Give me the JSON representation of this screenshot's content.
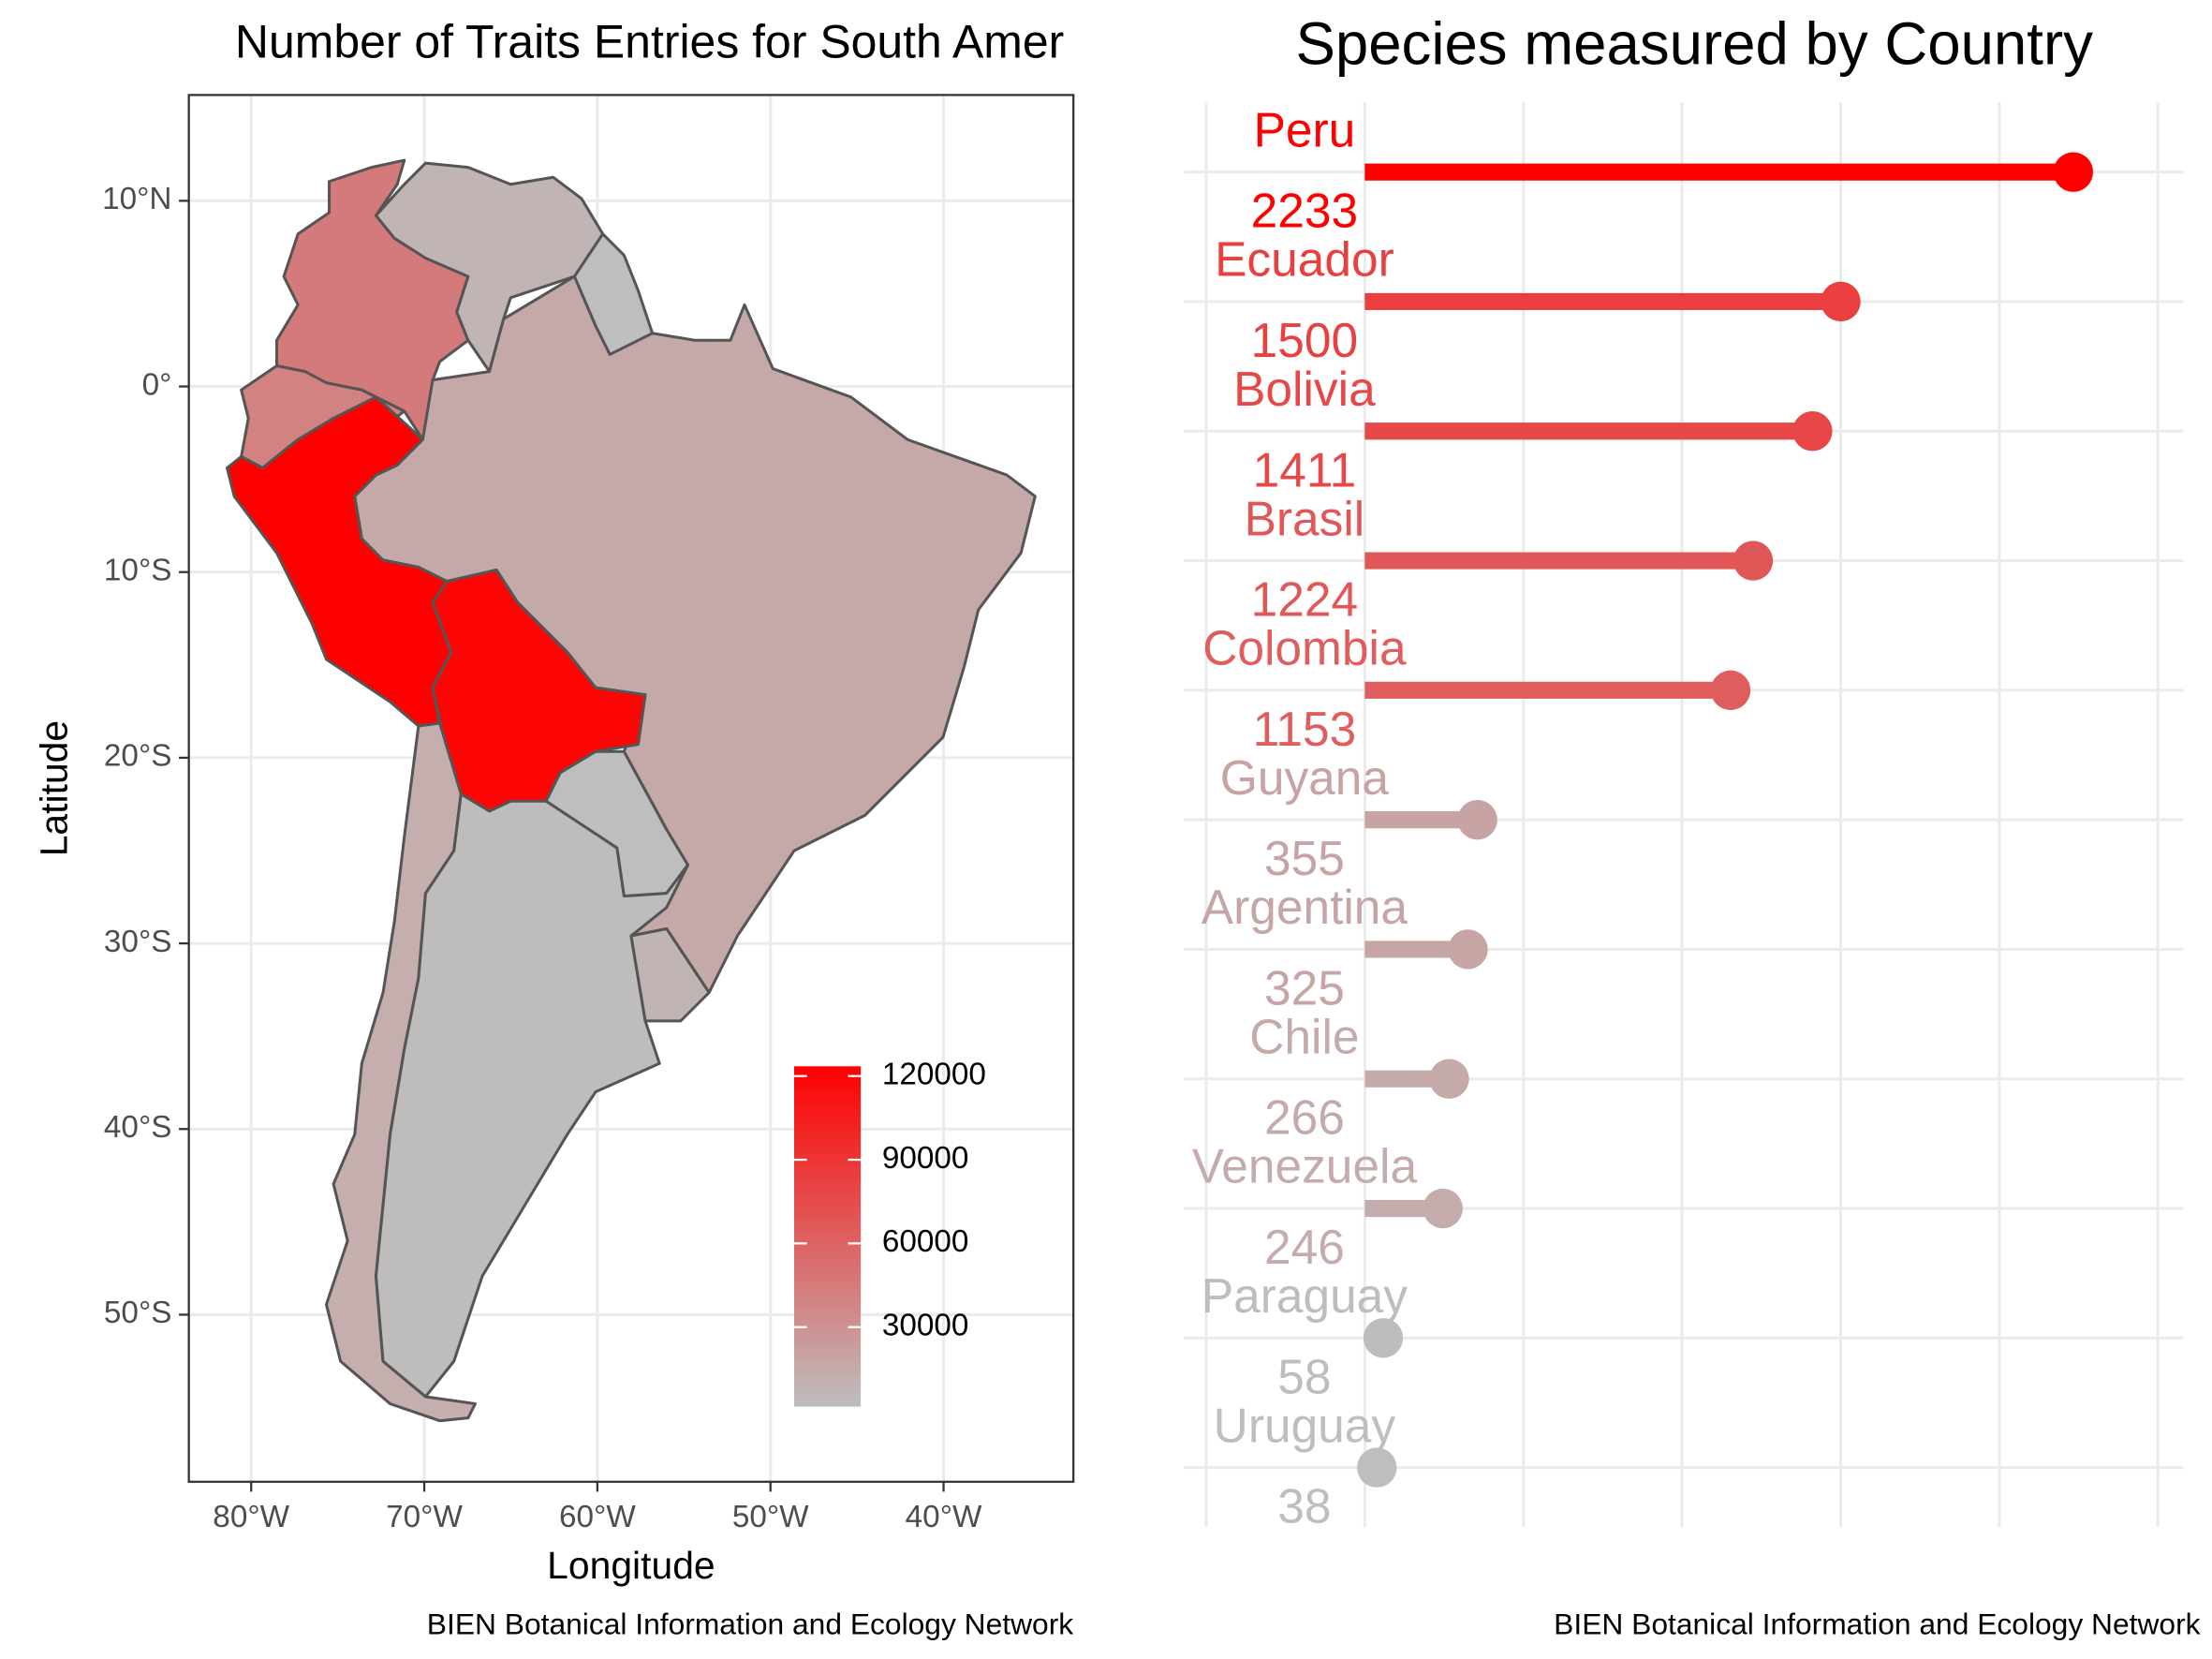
{
  "chart_data": [
    {
      "type": "map",
      "title": "Number of Traits Entries for South Amer",
      "x_label": "Longitude",
      "y_label": "Latitude",
      "caption": "BIEN Botanical Information and Ecology Network",
      "xlim": [
        -83.6,
        -32.5
      ],
      "ylim": [
        -59,
        15.7
      ],
      "xticks": [
        {
          "value": -80,
          "label": "80°W"
        },
        {
          "value": -70,
          "label": "70°W"
        },
        {
          "value": -60,
          "label": "60°W"
        },
        {
          "value": -50,
          "label": "50°W"
        },
        {
          "value": -40,
          "label": "40°W"
        }
      ],
      "yticks": [
        {
          "value": 10,
          "label": "10°N"
        },
        {
          "value": 0,
          "label": "0°"
        },
        {
          "value": -10,
          "label": "10°S"
        },
        {
          "value": -20,
          "label": "20°S"
        },
        {
          "value": -30,
          "label": "30°S"
        },
        {
          "value": -40,
          "label": "40°S"
        },
        {
          "value": -50,
          "label": "50°S"
        }
      ],
      "region_values": [
        45000,
        8000,
        1500,
        15000,
        40000,
        123500,
        120000,
        1500,
        12000,
        3000,
        8000
      ],
      "legend_ticks": [
        30000,
        60000,
        90000,
        120000
      ],
      "color_low": "#bebebe",
      "color_high": "#ff0000",
      "grid": true
    },
    {
      "type": "lollipop",
      "title": "Species measured by Country",
      "caption": "BIEN Botanical Information and Ecology Network",
      "categories": [
        "Peru",
        "Ecuador",
        "Bolivia",
        "Brasil",
        "Colombia",
        "Guyana",
        "Argentina",
        "Chile",
        "Venezuela",
        "Paraguay",
        "Uruguay"
      ],
      "values": [
        2233,
        1500,
        1411,
        1224,
        1153,
        355,
        325,
        266,
        246,
        58,
        38
      ],
      "xlim": [
        -570,
        2580
      ],
      "xticks": [
        -500,
        0,
        500,
        1000,
        1500,
        2000,
        2500
      ],
      "color_low": "#bebebe",
      "color_high": "#ff0000",
      "grid": true
    }
  ]
}
